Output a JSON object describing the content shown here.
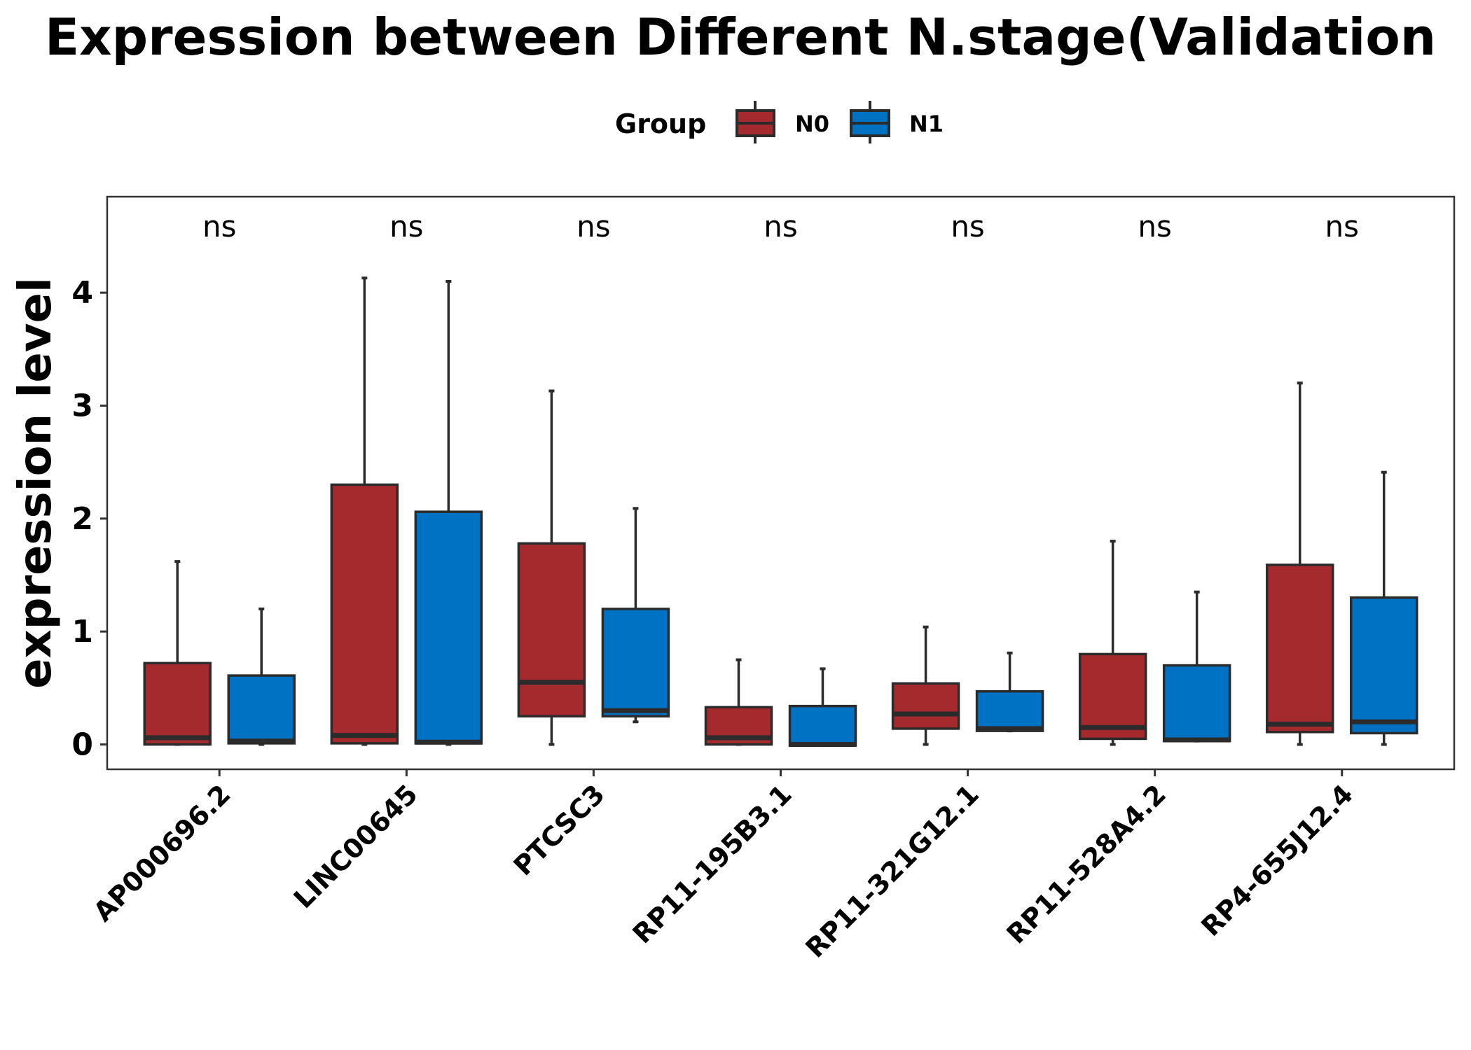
{
  "chart_data": {
    "type": "box",
    "title": "Expression between Different N.stage(Validation",
    "xlabel": "",
    "ylabel": "expression level",
    "ylim": [
      -0.22,
      4.85
    ],
    "yticks": [
      0,
      1,
      2,
      3,
      4
    ],
    "grid": false,
    "legend": {
      "title": "Group",
      "placement": "top",
      "entries": [
        "N0",
        "N1"
      ]
    },
    "colors": {
      "N0": "#A52A2E",
      "N1": "#0072C3",
      "outline": "#2b2b2b"
    },
    "categories": [
      "AP000696.2",
      "LINC00645",
      "PTCSC3",
      "RP11-195B3.1",
      "RP11-321G12.1",
      "RP11-528A4.2",
      "RP4-655J12.4"
    ],
    "significance": [
      "ns",
      "ns",
      "ns",
      "ns",
      "ns",
      "ns",
      "ns"
    ],
    "series": [
      {
        "name": "N0",
        "boxes": [
          {
            "min": 0.0,
            "q1": 0.0,
            "median": 0.06,
            "q3": 0.72,
            "max": 1.62
          },
          {
            "min": 0.0,
            "q1": 0.01,
            "median": 0.08,
            "q3": 2.3,
            "max": 4.13
          },
          {
            "min": 0.0,
            "q1": 0.25,
            "median": 0.55,
            "q3": 1.78,
            "max": 3.13
          },
          {
            "min": 0.0,
            "q1": 0.0,
            "median": 0.06,
            "q3": 0.33,
            "max": 0.75
          },
          {
            "min": 0.0,
            "q1": 0.14,
            "median": 0.27,
            "q3": 0.54,
            "max": 1.04
          },
          {
            "min": 0.0,
            "q1": 0.05,
            "median": 0.15,
            "q3": 0.8,
            "max": 1.8
          },
          {
            "min": 0.0,
            "q1": 0.11,
            "median": 0.18,
            "q3": 1.59,
            "max": 3.2
          }
        ]
      },
      {
        "name": "N1",
        "boxes": [
          {
            "min": 0.0,
            "q1": 0.01,
            "median": 0.03,
            "q3": 0.61,
            "max": 1.2
          },
          {
            "min": 0.0,
            "q1": 0.01,
            "median": 0.02,
            "q3": 2.06,
            "max": 4.1
          },
          {
            "min": 0.2,
            "q1": 0.25,
            "median": 0.3,
            "q3": 1.2,
            "max": 2.09
          },
          {
            "min": -0.01,
            "q1": -0.01,
            "median": 0.0,
            "q3": 0.34,
            "max": 0.67
          },
          {
            "min": 0.12,
            "q1": 0.12,
            "median": 0.14,
            "q3": 0.47,
            "max": 0.81
          },
          {
            "min": 0.03,
            "q1": 0.03,
            "median": 0.04,
            "q3": 0.7,
            "max": 1.35
          },
          {
            "min": 0.0,
            "q1": 0.1,
            "median": 0.2,
            "q3": 1.3,
            "max": 2.41
          }
        ]
      }
    ]
  }
}
